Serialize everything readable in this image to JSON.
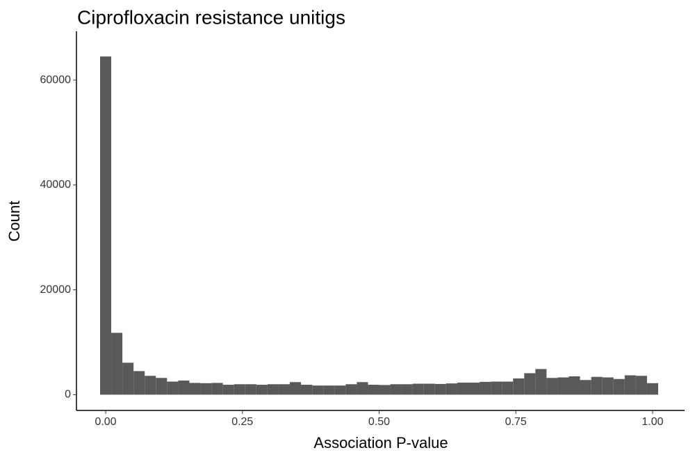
{
  "chart_data": {
    "type": "histogram",
    "title": "Ciprofloxacin resistance unitigs",
    "x_label": "Association P-value",
    "y_label": "Count",
    "color": "#595959",
    "bins": [
      -0.0102,
      0.0102,
      0.0306,
      0.051,
      0.0714,
      0.0918,
      0.1122,
      0.1327,
      0.1531,
      0.1735,
      0.1939,
      0.2143,
      0.2347,
      0.2551,
      0.2755,
      0.2959,
      0.3163,
      0.3367,
      0.3571,
      0.3776,
      0.398,
      0.4184,
      0.4388,
      0.4592,
      0.4796,
      0.5,
      0.5204,
      0.5408,
      0.5612,
      0.5816,
      0.602,
      0.6224,
      0.6429,
      0.6633,
      0.6837,
      0.7041,
      0.7245,
      0.7449,
      0.7653,
      0.7857,
      0.8061,
      0.8265,
      0.8469,
      0.8673,
      0.8878,
      0.9082,
      0.9286,
      0.949,
      0.9694,
      0.9898,
      1.0102
    ],
    "values": [
      64500,
      11800,
      6100,
      4500,
      3600,
      3200,
      2500,
      2700,
      2250,
      2200,
      2250,
      1900,
      2000,
      2000,
      1900,
      2000,
      2000,
      2400,
      1900,
      1750,
      1750,
      1750,
      2000,
      2400,
      1900,
      1850,
      2000,
      2000,
      2100,
      2100,
      2050,
      2150,
      2300,
      2300,
      2450,
      2500,
      2500,
      3100,
      4100,
      4900,
      3200,
      3300,
      3500,
      2800,
      3400,
      3300,
      3000,
      3700,
      3600,
      2200
    ],
    "xlim": [
      -0.0534,
      1.0585
    ],
    "xticks": [
      {
        "value": 0,
        "label": "0.00"
      },
      {
        "value": 0.25,
        "label": "0.25"
      },
      {
        "value": 0.5,
        "label": "0.50"
      },
      {
        "value": 0.75,
        "label": "0.75"
      },
      {
        "value": 1,
        "label": "1.00"
      }
    ],
    "ylim": [
      -3000,
      69300
    ],
    "yticks": [
      0,
      20000,
      40000,
      60000
    ]
  }
}
